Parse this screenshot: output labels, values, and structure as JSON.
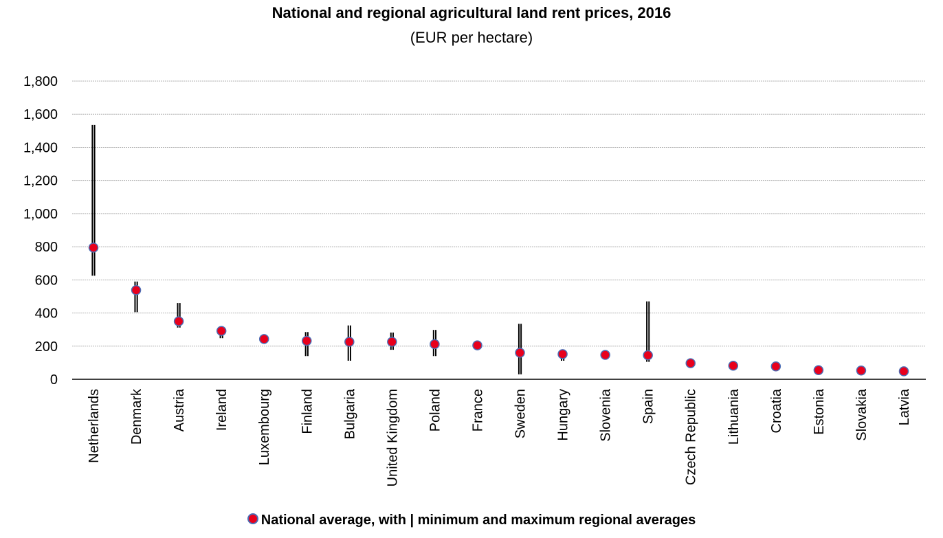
{
  "chart_data": {
    "type": "scatter",
    "title": "National and regional agricultural land rent prices, 2016",
    "subtitle": "(EUR per hectare)",
    "xlabel": "",
    "ylabel": "",
    "ylim": [
      0,
      1800
    ],
    "yticks": [
      0,
      200,
      400,
      600,
      800,
      1000,
      1200,
      1400,
      1600,
      1800
    ],
    "ytick_labels": [
      "0",
      "200",
      "400",
      "600",
      "800",
      "1,000",
      "1,200",
      "1,400",
      "1,600",
      "1,800"
    ],
    "grid": true,
    "legend_position": "bottom",
    "legend_label": "National average, with | minimum and maximum regional averages",
    "categories": [
      "Netherlands",
      "Denmark",
      "Austria",
      "Ireland",
      "Luxembourg",
      "Finland",
      "Bulgaria",
      "United Kingdom",
      "Poland",
      "France",
      "Sweden",
      "Hungary",
      "Slovenia",
      "Spain",
      "Czech Republic",
      "Lithuania",
      "Croatia",
      "Estonia",
      "Slovakia",
      "Latvia"
    ],
    "series": [
      {
        "name": "National average",
        "values": [
          795,
          538,
          350,
          292,
          243,
          232,
          226,
          226,
          212,
          205,
          160,
          152,
          147,
          145,
          97,
          82,
          78,
          55,
          53,
          48
        ]
      },
      {
        "name": "Minimum regional average",
        "values": [
          625,
          405,
          312,
          248,
          null,
          140,
          112,
          178,
          140,
          null,
          30,
          112,
          null,
          105,
          null,
          null,
          null,
          null,
          48,
          null
        ]
      },
      {
        "name": "Maximum regional average",
        "values": [
          1535,
          590,
          460,
          300,
          null,
          285,
          325,
          282,
          298,
          null,
          335,
          160,
          null,
          470,
          null,
          null,
          null,
          null,
          75,
          null
        ]
      }
    ],
    "colors": {
      "marker_fill": "#e8001c",
      "marker_stroke": "#4b6db5",
      "range_line": "#000000",
      "grid": "#b0b0b0",
      "axis": "#000000"
    }
  }
}
